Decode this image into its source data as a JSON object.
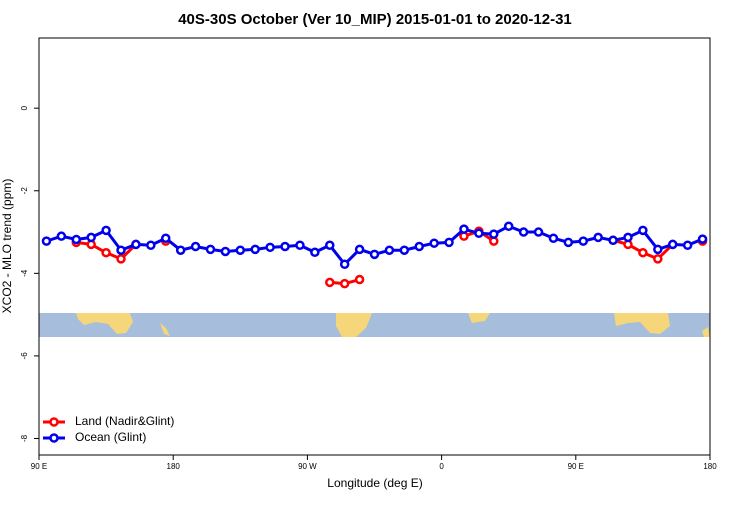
{
  "chart_data": {
    "type": "line",
    "title": "40S-30S October (Ver 10_MIP)   2015-01-01 to 2020-12-31",
    "x_label": "Longitude (deg E)",
    "y_label": "XCO2 - MLO trend (ppm)",
    "x": [
      95,
      105,
      115,
      125,
      135,
      145,
      155,
      165,
      175,
      185,
      195,
      205,
      215,
      225,
      235,
      245,
      255,
      265,
      275,
      285,
      295,
      305,
      315,
      325,
      335,
      345,
      355,
      365,
      375,
      385,
      395,
      405,
      415,
      425,
      435,
      445,
      455,
      465,
      475,
      485,
      495,
      505,
      515,
      525,
      535
    ],
    "series": [
      {
        "name": "Land (Nadir&Glint)",
        "color": "#ff0000",
        "values": [
          null,
          null,
          -3.25,
          -3.3,
          -3.5,
          -3.65,
          -3.3,
          null,
          -3.22,
          null,
          null,
          null,
          null,
          null,
          null,
          null,
          null,
          null,
          null,
          -4.22,
          -4.25,
          -4.15,
          null,
          null,
          null,
          null,
          null,
          null,
          -3.1,
          -2.98,
          -3.22,
          null,
          null,
          null,
          null,
          null,
          null,
          null,
          -3.2,
          -3.3,
          -3.5,
          -3.65,
          -3.3,
          null,
          -3.22
        ]
      },
      {
        "name": "Ocean (Glint)",
        "color": "#0000ee",
        "values": [
          -3.22,
          -3.1,
          -3.18,
          -3.13,
          -2.96,
          -3.44,
          -3.3,
          -3.32,
          -3.15,
          -3.44,
          -3.35,
          -3.42,
          -3.47,
          -3.44,
          -3.42,
          -3.37,
          -3.35,
          -3.32,
          -3.49,
          -3.32,
          -3.78,
          -3.42,
          -3.54,
          -3.44,
          -3.44,
          -3.35,
          -3.27,
          -3.25,
          -2.93,
          -3.03,
          -3.05,
          -2.86,
          -3.0,
          -3.0,
          -3.15,
          -3.25,
          -3.22,
          -3.13,
          -3.2,
          -3.13,
          -2.96,
          -3.42,
          -3.3,
          -3.32,
          -3.17
        ]
      }
    ],
    "xlim": [
      90,
      540
    ],
    "xticks": [
      {
        "value": 90,
        "label": "90 E"
      },
      180,
      {
        "value": 270,
        "label": "90 W"
      },
      {
        "value": 360,
        "label": "0"
      },
      {
        "value": 450,
        "label": "90 E"
      },
      {
        "value": 540,
        "label": "180"
      }
    ],
    "ylim": [
      -8.4,
      1.7
    ],
    "yticks": [
      -8,
      -6,
      -4,
      -2,
      0
    ],
    "legend": "bottom-left"
  }
}
